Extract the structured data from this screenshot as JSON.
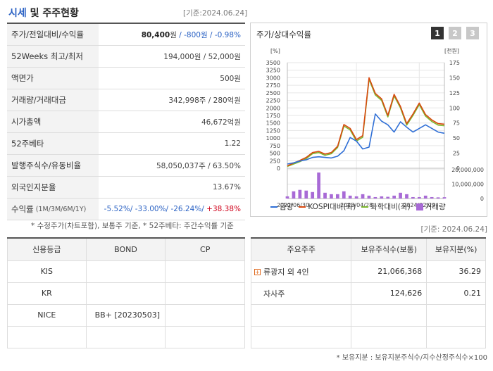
{
  "header": {
    "title_a": "시세",
    "title_b": " 및 주주현황",
    "date_left": "[기준:2024.06.24]"
  },
  "market": {
    "rows": [
      {
        "label": "주가/전일대비/수익률",
        "v1": "80,400",
        "v1u": "원",
        "v2": "-800원",
        "v3": "-0.98%"
      },
      {
        "label": "52Weeks 최고/최저",
        "value": "194,000원 / 52,000원"
      },
      {
        "label": "액면가",
        "value": "500원"
      },
      {
        "label": "거래량/거래대금",
        "value": "342,998주 / 280억원"
      },
      {
        "label": "시가총액",
        "value": "46,672억원"
      },
      {
        "label": "52주베타",
        "value": "1.22"
      },
      {
        "label": "발행주식수/유동비율",
        "value": "58,050,037주 / 63.50%"
      },
      {
        "label": "외국인지분율",
        "value": "13.67%"
      },
      {
        "label": "수익률",
        "sub": "(1M/3M/6M/1Y)",
        "r1": "-5.52%",
        "r2": "-33.00%",
        "r3": "-26.24%",
        "r4": "+38.38%"
      }
    ],
    "note": "* 수정주가(차트포함), 보통주 기준, * 52주베타: 주간수익률 기준"
  },
  "chart_panel": {
    "title": "주가/상대수익률",
    "period_buttons": [
      "1",
      "2",
      "3"
    ],
    "active_button": "1",
    "left_unit": "[%]",
    "right_unit": "[천원]",
    "legend": [
      {
        "name": "금양",
        "color": "#2f6fd6",
        "kind": "line"
      },
      {
        "name": "KOSPI대비(좌)",
        "color": "#d9480f",
        "kind": "line"
      },
      {
        "name": "화학대비(좌)",
        "color": "#7cb82f",
        "kind": "line"
      },
      {
        "name": "거래량",
        "color": "#a86ad6",
        "kind": "bar"
      }
    ]
  },
  "chart_data": {
    "type": "line",
    "x": [
      "2022/06/30",
      "",
      "",
      "",
      "",
      "",
      "",
      "",
      "",
      "",
      "",
      "2023/04/28",
      "",
      "",
      "",
      "",
      "",
      "",
      "",
      "",
      "",
      "2024/02/29",
      "",
      "",
      "",
      ""
    ],
    "x_tick_labels": [
      "2022/06/30",
      "2023/04/28",
      "2024/02/29"
    ],
    "ylim_left": [
      0,
      3500
    ],
    "yticks_left": [
      0,
      250,
      500,
      750,
      1000,
      1250,
      1500,
      1750,
      2000,
      2250,
      2500,
      2750,
      3000,
      3250,
      3500
    ],
    "ylim_right": [
      0,
      175
    ],
    "yticks_right": [
      0,
      25,
      50,
      75,
      100,
      125,
      150,
      175
    ],
    "volume_ylim": [
      0,
      20000000
    ],
    "volume_yticks": [
      0,
      10000000,
      20000000
    ],
    "volume_tick_labels": [
      "0",
      "10,000,000",
      "20,000,000"
    ],
    "series": [
      {
        "name": "금양",
        "axis": "right",
        "values": [
          7,
          9,
          12,
          14,
          18,
          19,
          18,
          17,
          20,
          29,
          51,
          45,
          32,
          35,
          90,
          78,
          72,
          60,
          77,
          68,
          60,
          66,
          72,
          66,
          60,
          58
        ]
      },
      {
        "name": "KOSPI대비(좌)",
        "axis": "left",
        "values": [
          80,
          170,
          260,
          360,
          520,
          560,
          470,
          520,
          730,
          1450,
          1320,
          950,
          1080,
          3000,
          2480,
          2300,
          1750,
          2450,
          2050,
          1480,
          1800,
          2160,
          1780,
          1600,
          1480,
          1460
        ]
      },
      {
        "name": "화학대비(좌)",
        "axis": "left",
        "values": [
          60,
          140,
          220,
          320,
          480,
          520,
          430,
          480,
          690,
          1400,
          1270,
          900,
          1030,
          2950,
          2430,
          2250,
          1700,
          2400,
          2000,
          1430,
          1750,
          2110,
          1730,
          1550,
          1430,
          1410
        ]
      },
      {
        "name": "거래량",
        "axis": "volume",
        "kind": "bar",
        "values": [
          1500000,
          5000000,
          6000000,
          5500000,
          4500000,
          18000000,
          4000000,
          3000000,
          3000000,
          5000000,
          2000000,
          1500000,
          3000000,
          2000000,
          1000000,
          1500000,
          1200000,
          2000000,
          4000000,
          3000000,
          1000000,
          1000000,
          2000000,
          1000000,
          800000,
          900000
        ]
      }
    ]
  },
  "credit": {
    "headers": [
      "신용등급",
      "BOND",
      "CP"
    ],
    "rows": [
      [
        "KIS",
        "",
        ""
      ],
      [
        "KR",
        "",
        ""
      ],
      [
        "NICE",
        "BB+   [20230503]",
        ""
      ],
      [
        "",
        "",
        ""
      ]
    ]
  },
  "holders": {
    "date": "[기준: 2024.06.24]",
    "headers": [
      "주요주주",
      "보유주식수(보통)",
      "보유지분(%)"
    ],
    "rows": [
      {
        "name": "류광지 외 4인",
        "shares": "21,066,368",
        "pct": "36.29",
        "expand": true
      },
      {
        "name": "자사주",
        "shares": "124,626",
        "pct": "0.21",
        "expand": false
      },
      {
        "name": "",
        "shares": "",
        "pct": "",
        "expand": false
      },
      {
        "name": "",
        "shares": "",
        "pct": "",
        "expand": false
      }
    ],
    "note": "* 보유지분 : 보유지분주식수/지수산정주식수×100"
  }
}
